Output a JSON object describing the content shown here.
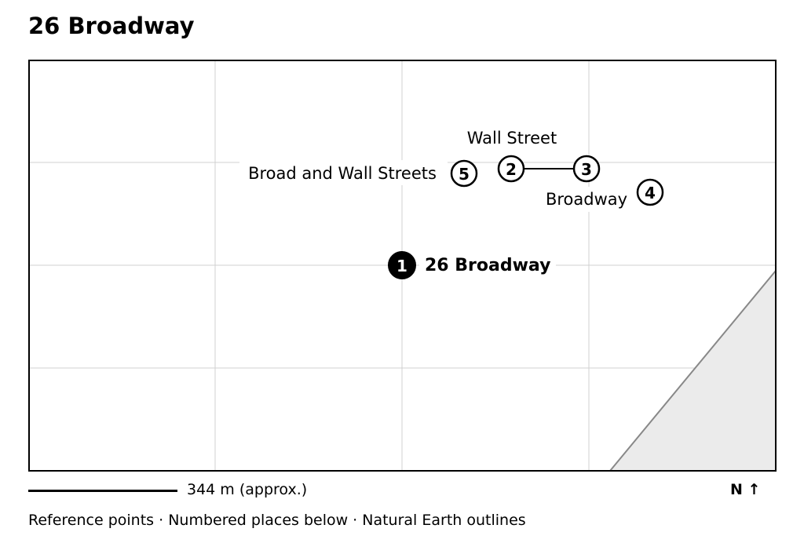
{
  "title": "26 Broadway",
  "map": {
    "features": [
      {
        "id": "1",
        "label": "26 Broadway",
        "primary": true
      },
      {
        "id": "2",
        "label": "Wall Street"
      },
      {
        "id": "3",
        "label": ""
      },
      {
        "id": "4",
        "label": "Broadway"
      },
      {
        "id": "5",
        "label": "Broad and Wall Streets"
      }
    ],
    "connections": [
      [
        "2",
        "3"
      ]
    ],
    "land_fill": "#ebebeb",
    "grid": true
  },
  "scale_bar": {
    "label": "344 m (approx.)"
  },
  "north_arrow": "N ↑",
  "footer": "Reference points · Numbered places below · Natural Earth outlines"
}
